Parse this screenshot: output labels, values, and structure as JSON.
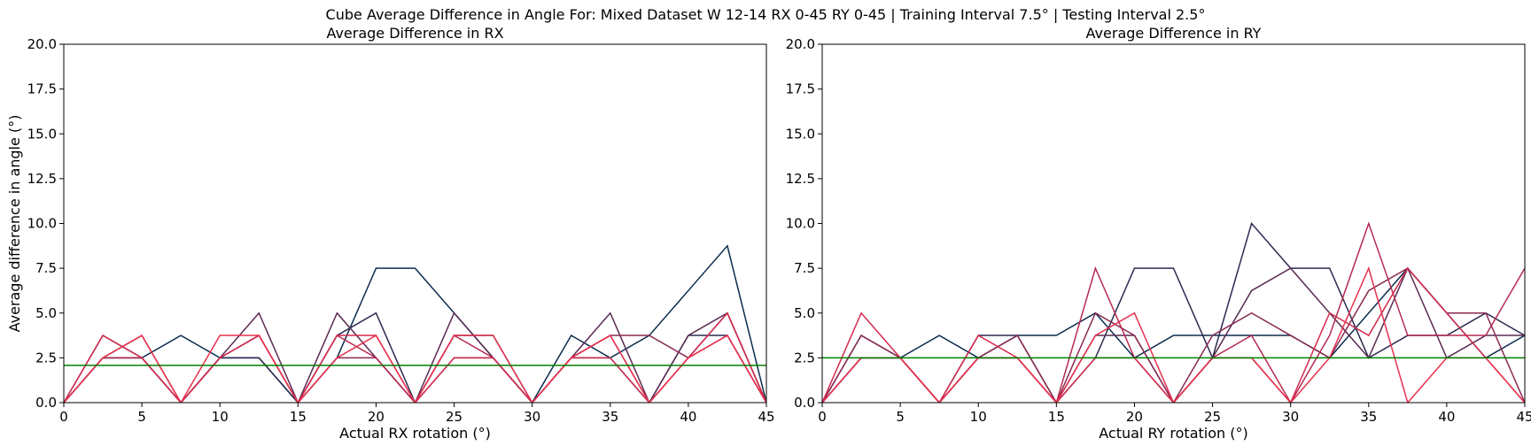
{
  "figure": {
    "suptitle": "Cube Average Difference in Angle For: Mixed Dataset W 12-14 RX 0-45 RY 0-45 | Training Interval 7.5° | Testing Interval 2.5°"
  },
  "colors": {
    "reference_line": "#008000",
    "palette": [
      "#0d2b4e",
      "#2b2a50",
      "#5a2a52",
      "#8a2a52",
      "#b72a50",
      "#d42a4e",
      "#e8304e"
    ]
  },
  "chart_data": [
    {
      "type": "line",
      "title": "Average Difference in RX",
      "xlabel": "Actual RX rotation (°)",
      "ylabel": "Average difference in angle (°)",
      "xlim": [
        0,
        45
      ],
      "ylim": [
        0,
        20
      ],
      "xticks": [
        "0",
        "5",
        "10",
        "15",
        "20",
        "25",
        "30",
        "35",
        "40",
        "45"
      ],
      "yticks": [
        "0.0",
        "2.5",
        "5.0",
        "7.5",
        "10.0",
        "12.5",
        "15.0",
        "17.5",
        "20.0"
      ],
      "x": [
        0,
        2.5,
        5,
        7.5,
        10,
        12.5,
        15,
        17.5,
        20,
        22.5,
        25,
        27.5,
        30,
        32.5,
        35,
        37.5,
        40,
        42.5,
        45
      ],
      "reference_line": 2.08,
      "series": [
        {
          "values": [
            0,
            2.5,
            2.5,
            3.75,
            2.5,
            2.5,
            0,
            2.5,
            7.5,
            7.5,
            5,
            2.5,
            0,
            3.75,
            2.5,
            3.75,
            6.25,
            8.75,
            0
          ]
        },
        {
          "values": [
            0,
            2.5,
            2.5,
            0,
            2.5,
            2.5,
            0,
            3.75,
            5,
            0,
            3.75,
            3.75,
            0,
            2.5,
            2.5,
            0,
            3.75,
            3.75,
            0
          ]
        },
        {
          "values": [
            0,
            3.75,
            2.5,
            0,
            2.5,
            5,
            0,
            5,
            2.5,
            0,
            5,
            2.5,
            0,
            2.5,
            5,
            0,
            3.75,
            5,
            0
          ]
        },
        {
          "values": [
            0,
            2.5,
            3.75,
            0,
            2.5,
            3.75,
            0,
            2.5,
            2.5,
            0,
            2.5,
            2.5,
            0,
            2.5,
            3.75,
            3.75,
            2.5,
            5,
            0
          ]
        },
        {
          "values": [
            0,
            2.5,
            2.5,
            0,
            2.5,
            3.75,
            0,
            3.75,
            2.5,
            0,
            3.75,
            2.5,
            0,
            2.5,
            3.75,
            0,
            2.5,
            3.75,
            0
          ]
        },
        {
          "values": [
            0,
            3.75,
            2.5,
            0,
            2.5,
            3.75,
            0,
            3.75,
            3.75,
            0,
            2.5,
            2.5,
            0,
            2.5,
            2.5,
            0,
            2.5,
            5,
            0
          ]
        },
        {
          "values": [
            0,
            2.5,
            3.75,
            0,
            3.75,
            3.75,
            0,
            2.5,
            3.75,
            0,
            3.75,
            3.75,
            0,
            2.5,
            3.75,
            0,
            2.5,
            3.75,
            0
          ]
        }
      ]
    },
    {
      "type": "line",
      "title": "Average Difference in RY",
      "xlabel": "Actual RY rotation (°)",
      "ylabel": "",
      "xlim": [
        0,
        45
      ],
      "ylim": [
        0,
        20
      ],
      "xticks": [
        "0",
        "5",
        "10",
        "15",
        "20",
        "25",
        "30",
        "35",
        "40",
        "45"
      ],
      "yticks": [
        "0.0",
        "2.5",
        "5.0",
        "7.5",
        "10.0",
        "12.5",
        "15.0",
        "17.5",
        "20.0"
      ],
      "x": [
        0,
        2.5,
        5,
        7.5,
        10,
        12.5,
        15,
        17.5,
        20,
        22.5,
        25,
        27.5,
        30,
        32.5,
        35,
        37.5,
        40,
        42.5,
        45
      ],
      "reference_line": 2.5,
      "series": [
        {
          "values": [
            0,
            2.5,
            2.5,
            3.75,
            2.5,
            3.75,
            3.75,
            5,
            2.5,
            3.75,
            3.75,
            3.75,
            3.75,
            2.5,
            5,
            7.5,
            5,
            2.5,
            3.75
          ]
        },
        {
          "values": [
            0,
            2.5,
            2.5,
            0,
            3.75,
            3.75,
            0,
            2.5,
            7.5,
            7.5,
            2.5,
            10,
            7.5,
            7.5,
            2.5,
            3.75,
            3.75,
            5,
            3.75
          ]
        },
        {
          "values": [
            0,
            3.75,
            2.5,
            0,
            2.5,
            2.5,
            0,
            3.75,
            3.75,
            0,
            2.5,
            6.25,
            7.5,
            5,
            2.5,
            7.5,
            2.5,
            3.75,
            3.75
          ]
        },
        {
          "values": [
            0,
            3.75,
            2.5,
            0,
            2.5,
            3.75,
            0,
            5,
            3.75,
            0,
            3.75,
            5,
            3.75,
            2.5,
            6.25,
            7.5,
            5,
            5,
            0
          ]
        },
        {
          "values": [
            0,
            2.5,
            2.5,
            0,
            2.5,
            2.5,
            0,
            7.5,
            2.5,
            0,
            2.5,
            3.75,
            0,
            3.75,
            10,
            3.75,
            3.75,
            3.75,
            7.5
          ]
        },
        {
          "values": [
            0,
            5,
            2.5,
            0,
            3.75,
            2.5,
            0,
            2.5,
            2.5,
            0,
            2.5,
            2.5,
            0,
            5,
            3.75,
            7.5,
            5,
            2.5,
            0
          ]
        },
        {
          "values": [
            0,
            2.5,
            2.5,
            0,
            2.5,
            2.5,
            0,
            3.75,
            5,
            0,
            2.5,
            2.5,
            0,
            2.5,
            7.5,
            0,
            2.5,
            2.5,
            0
          ]
        }
      ]
    }
  ]
}
